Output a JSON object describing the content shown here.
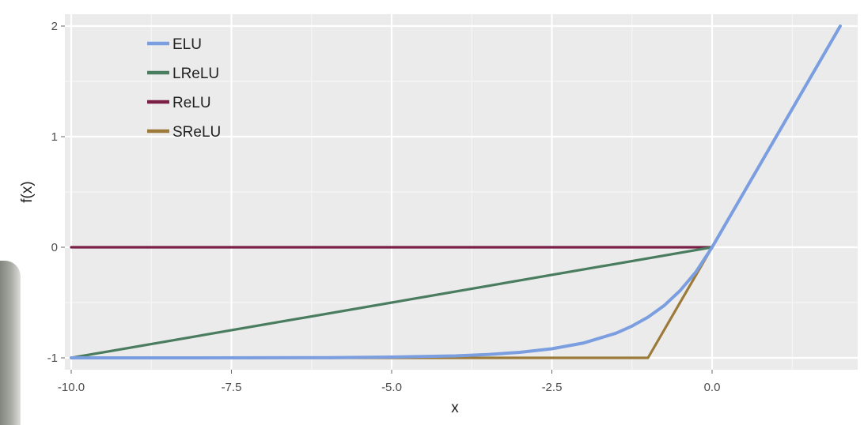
{
  "chart_data": {
    "type": "line",
    "xlabel": "x",
    "ylabel": "f(x)",
    "xlim": [
      -10.0,
      2.0
    ],
    "ylim": [
      -1.0,
      2.0
    ],
    "x_ticks": [
      -10.0,
      -7.5,
      -5.0,
      -2.5,
      0.0
    ],
    "x_tick_labels": [
      "-10.0",
      "-7.5",
      "-5.0",
      "-2.5",
      "0.0"
    ],
    "y_ticks": [
      -1,
      0,
      1,
      2
    ],
    "y_tick_labels": [
      "-1",
      "0",
      "1",
      "2"
    ],
    "grid": true,
    "legend_position": "top-left",
    "colors": {
      "panel": "#ebebeb",
      "grid": "#ffffff",
      "ELU": "#7b9ee0",
      "LReLU": "#4a7d5f",
      "ReLU": "#7a1f45",
      "SReLU": "#9c7a3a"
    },
    "series": [
      {
        "name": "ELU",
        "x": [
          -10.0,
          -8.0,
          -6.0,
          -5.0,
          -4.0,
          -3.5,
          -3.0,
          -2.5,
          -2.0,
          -1.5,
          -1.25,
          -1.0,
          -0.75,
          -0.5,
          -0.25,
          0.0,
          0.5,
          1.0,
          1.5,
          2.0
        ],
        "y": [
          -1.0,
          -1.0,
          -0.998,
          -0.993,
          -0.982,
          -0.97,
          -0.95,
          -0.918,
          -0.865,
          -0.777,
          -0.713,
          -0.632,
          -0.528,
          -0.393,
          -0.221,
          0.0,
          0.5,
          1.0,
          1.5,
          2.0
        ]
      },
      {
        "name": "LReLU",
        "x": [
          -10.0,
          0.0,
          2.0
        ],
        "y": [
          -1.0,
          0.0,
          2.0
        ]
      },
      {
        "name": "ReLU",
        "x": [
          -10.0,
          0.0,
          2.0
        ],
        "y": [
          0.0,
          0.0,
          2.0
        ]
      },
      {
        "name": "SReLU",
        "x": [
          -10.0,
          -1.0,
          0.0,
          2.0
        ],
        "y": [
          -1.0,
          -1.0,
          0.0,
          2.0
        ]
      }
    ],
    "legend": [
      "ELU",
      "LReLU",
      "ReLU",
      "SReLU"
    ]
  }
}
